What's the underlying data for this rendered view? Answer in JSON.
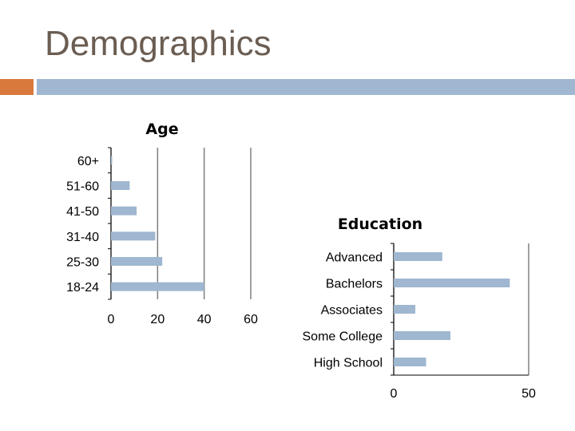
{
  "slide": {
    "title": "Demographics"
  },
  "theme": {
    "bar_color": "#9fb7d0",
    "title_color": "#6b5d52",
    "accent_left": "#d97a3c",
    "accent_right": "#9fb7d0",
    "axis_color": "#000000",
    "grid_color": "#808080"
  },
  "chart_data": [
    {
      "type": "bar",
      "orientation": "horizontal",
      "title": "Age",
      "categories": [
        "60+",
        "51-60",
        "41-50",
        "31-40",
        "25-30",
        "18-24"
      ],
      "values": [
        0.5,
        8,
        11,
        19,
        22,
        40
      ],
      "xlim": [
        0,
        60
      ],
      "xticks": [
        "0",
        "20",
        "40",
        "60"
      ],
      "grid": true
    },
    {
      "type": "bar",
      "orientation": "horizontal",
      "title": "Education",
      "categories": [
        "Advanced",
        "Bachelors",
        "Associates",
        "Some College",
        "High School"
      ],
      "values": [
        18,
        43,
        8,
        21,
        12
      ],
      "xlim": [
        0,
        50
      ],
      "xticks": [
        "0",
        "50"
      ],
      "grid": true
    }
  ]
}
